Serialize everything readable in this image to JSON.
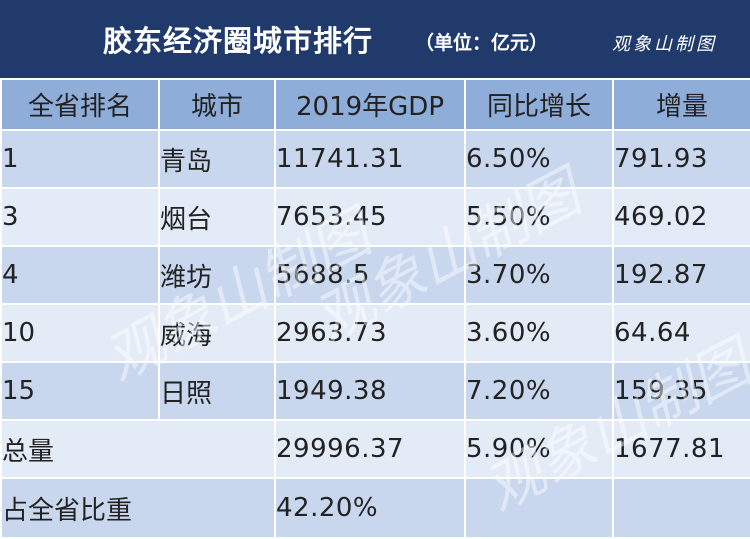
{
  "header": {
    "title": "胶东经济圈城市排行",
    "unit": "（单位：亿元）",
    "brand": "观象山制图"
  },
  "table": {
    "columns": [
      "全省排名",
      "城市",
      "2019年GDP",
      "同比增长",
      "增量"
    ],
    "rows": [
      {
        "rank": "1",
        "city": "青岛",
        "gdp": "11741.31",
        "growth": "6.50%",
        "increase": "791.93"
      },
      {
        "rank": "3",
        "city": "烟台",
        "gdp": "7653.45",
        "growth": "5.50%",
        "increase": "469.02"
      },
      {
        "rank": "4",
        "city": "潍坊",
        "gdp": "5688.5",
        "growth": "3.70%",
        "increase": "192.87"
      },
      {
        "rank": "10",
        "city": "威海",
        "gdp": "2963.73",
        "growth": "3.60%",
        "increase": "64.64"
      },
      {
        "rank": "15",
        "city": "日照",
        "gdp": "1949.38",
        "growth": "7.20%",
        "increase": "159.35"
      }
    ],
    "total": {
      "label": "总量",
      "gdp": "29996.37",
      "growth": "5.90%",
      "increase": "1677.81"
    },
    "share": {
      "label": "占全省比重",
      "gdp": "42.20%"
    }
  },
  "chart_data": {
    "type": "table",
    "title": "胶东经济圈城市排行",
    "unit": "亿元",
    "columns": [
      "全省排名",
      "城市",
      "2019年GDP",
      "同比增长",
      "增量"
    ],
    "rows": [
      [
        1,
        "青岛",
        11741.31,
        "6.50%",
        791.93
      ],
      [
        3,
        "烟台",
        7653.45,
        "5.50%",
        469.02
      ],
      [
        4,
        "潍坊",
        5688.5,
        "3.70%",
        192.87
      ],
      [
        10,
        "威海",
        2963.73,
        "3.60%",
        64.64
      ],
      [
        15,
        "日照",
        1949.38,
        "7.20%",
        159.35
      ],
      [
        "总量",
        "",
        29996.37,
        "5.90%",
        1677.81
      ],
      [
        "占全省比重",
        "",
        "42.20%",
        "",
        ""
      ]
    ]
  }
}
